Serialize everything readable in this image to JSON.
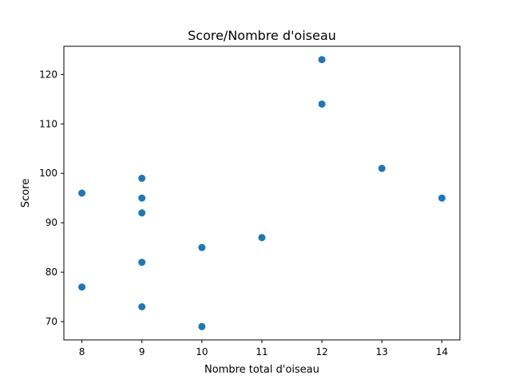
{
  "chart_data": {
    "type": "scatter",
    "title": "Score/Nombre d'oiseau",
    "xlabel": "Nombre total d'oiseau",
    "ylabel": "Score",
    "xlim": [
      7.7,
      14.3
    ],
    "ylim": [
      66.3,
      125.7
    ],
    "xticks": [
      8,
      9,
      10,
      11,
      12,
      13,
      14
    ],
    "yticks": [
      70,
      80,
      90,
      100,
      110,
      120
    ],
    "grid": false,
    "color": "#1f77b4",
    "points": [
      {
        "x": 8,
        "y": 96
      },
      {
        "x": 8,
        "y": 77
      },
      {
        "x": 9,
        "y": 99
      },
      {
        "x": 9,
        "y": 95
      },
      {
        "x": 9,
        "y": 92
      },
      {
        "x": 9,
        "y": 82
      },
      {
        "x": 9,
        "y": 73
      },
      {
        "x": 10,
        "y": 85
      },
      {
        "x": 10,
        "y": 69
      },
      {
        "x": 11,
        "y": 87
      },
      {
        "x": 12,
        "y": 123
      },
      {
        "x": 12,
        "y": 114
      },
      {
        "x": 13,
        "y": 101
      },
      {
        "x": 14,
        "y": 95
      }
    ]
  }
}
